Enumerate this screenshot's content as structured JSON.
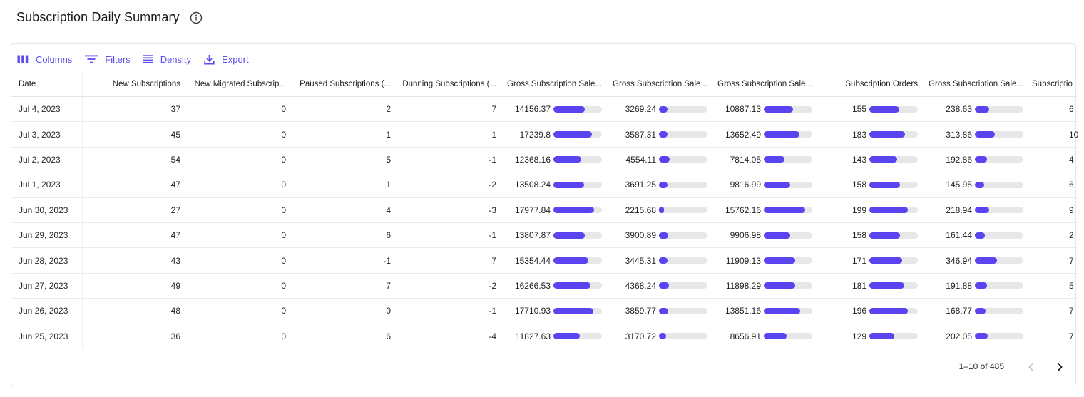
{
  "page": {
    "title": "Subscription Daily Summary",
    "info_icon": "info-circle-icon"
  },
  "toolbar": {
    "columns_label": "Columns",
    "filters_label": "Filters",
    "density_label": "Density",
    "export_label": "Export"
  },
  "colors": {
    "accent": "#5b4cf0",
    "bar_fill": "#5a44f0",
    "bar_track": "#e7e7ea"
  },
  "table": {
    "columns": [
      {
        "key": "date",
        "label": "Date"
      },
      {
        "key": "new_subs",
        "label": "New Subscriptions"
      },
      {
        "key": "migrated",
        "label": "New Migrated Subscrip..."
      },
      {
        "key": "paused",
        "label": "Paused Subscriptions (..."
      },
      {
        "key": "dunning",
        "label": "Dunning Subscriptions (..."
      },
      {
        "key": "gross1",
        "label": "Gross Subscription Sale..."
      },
      {
        "key": "gross2",
        "label": "Gross Subscription Sale..."
      },
      {
        "key": "gross3",
        "label": "Gross Subscription Sale..."
      },
      {
        "key": "orders",
        "label": "Subscription Orders"
      },
      {
        "key": "gross4",
        "label": "Gross Subscription Sale..."
      },
      {
        "key": "extra",
        "label": "Subscriptio"
      }
    ],
    "rows": [
      {
        "date": "Jul 4, 2023",
        "new_subs": "37",
        "migrated": "0",
        "paused": "2",
        "dunning": "7",
        "gross1": "14156.37",
        "gross1_pct": 0.64,
        "gross2": "3269.24",
        "gross2_pct": 0.17,
        "gross3": "10887.13",
        "gross3_pct": 0.6,
        "orders": "155",
        "orders_pct": 0.62,
        "gross4": "238.63",
        "gross4_pct": 0.3,
        "extra": "6"
      },
      {
        "date": "Jul 3, 2023",
        "new_subs": "45",
        "migrated": "0",
        "paused": "1",
        "dunning": "1",
        "gross1": "17239.8",
        "gross1_pct": 0.8,
        "gross2": "3587.31",
        "gross2_pct": 0.17,
        "gross3": "13652.49",
        "gross3_pct": 0.73,
        "orders": "183",
        "orders_pct": 0.74,
        "gross4": "313.86",
        "gross4_pct": 0.41,
        "extra": "10"
      },
      {
        "date": "Jul 2, 2023",
        "new_subs": "54",
        "migrated": "0",
        "paused": "5",
        "dunning": "-1",
        "gross1": "12368.16",
        "gross1_pct": 0.58,
        "gross2": "4554.11",
        "gross2_pct": 0.22,
        "gross3": "7814.05",
        "gross3_pct": 0.43,
        "orders": "143",
        "orders_pct": 0.57,
        "gross4": "192.86",
        "gross4_pct": 0.25,
        "extra": "4"
      },
      {
        "date": "Jul 1, 2023",
        "new_subs": "47",
        "migrated": "0",
        "paused": "1",
        "dunning": "-2",
        "gross1": "13508.24",
        "gross1_pct": 0.63,
        "gross2": "3691.25",
        "gross2_pct": 0.18,
        "gross3": "9816.99",
        "gross3_pct": 0.54,
        "orders": "158",
        "orders_pct": 0.63,
        "gross4": "145.95",
        "gross4_pct": 0.19,
        "extra": "6"
      },
      {
        "date": "Jun 30, 2023",
        "new_subs": "27",
        "migrated": "0",
        "paused": "4",
        "dunning": "-3",
        "gross1": "17977.84",
        "gross1_pct": 0.84,
        "gross2": "2215.68",
        "gross2_pct": 0.11,
        "gross3": "15762.16",
        "gross3_pct": 0.86,
        "orders": "199",
        "orders_pct": 0.8,
        "gross4": "218.94",
        "gross4_pct": 0.29,
        "extra": "9"
      },
      {
        "date": "Jun 29, 2023",
        "new_subs": "47",
        "migrated": "0",
        "paused": "6",
        "dunning": "-1",
        "gross1": "13807.87",
        "gross1_pct": 0.64,
        "gross2": "3900.89",
        "gross2_pct": 0.19,
        "gross3": "9906.98",
        "gross3_pct": 0.54,
        "orders": "158",
        "orders_pct": 0.63,
        "gross4": "161.44",
        "gross4_pct": 0.21,
        "extra": "2"
      },
      {
        "date": "Jun 28, 2023",
        "new_subs": "43",
        "migrated": "0",
        "paused": "-1",
        "dunning": "7",
        "gross1": "15354.44",
        "gross1_pct": 0.72,
        "gross2": "3445.31",
        "gross2_pct": 0.17,
        "gross3": "11909.13",
        "gross3_pct": 0.65,
        "orders": "171",
        "orders_pct": 0.68,
        "gross4": "346.94",
        "gross4_pct": 0.45,
        "extra": "7"
      },
      {
        "date": "Jun 27, 2023",
        "new_subs": "49",
        "migrated": "0",
        "paused": "7",
        "dunning": "-2",
        "gross1": "16266.53",
        "gross1_pct": 0.76,
        "gross2": "4368.24",
        "gross2_pct": 0.21,
        "gross3": "11898.29",
        "gross3_pct": 0.65,
        "orders": "181",
        "orders_pct": 0.72,
        "gross4": "191.88",
        "gross4_pct": 0.25,
        "extra": "5"
      },
      {
        "date": "Jun 26, 2023",
        "new_subs": "48",
        "migrated": "0",
        "paused": "0",
        "dunning": "-1",
        "gross1": "17710.93",
        "gross1_pct": 0.83,
        "gross2": "3859.77",
        "gross2_pct": 0.19,
        "gross3": "13851.16",
        "gross3_pct": 0.75,
        "orders": "196",
        "orders_pct": 0.79,
        "gross4": "168.77",
        "gross4_pct": 0.22,
        "extra": "7"
      },
      {
        "date": "Jun 25, 2023",
        "new_subs": "36",
        "migrated": "0",
        "paused": "6",
        "dunning": "-4",
        "gross1": "11827.63",
        "gross1_pct": 0.55,
        "gross2": "3170.72",
        "gross2_pct": 0.15,
        "gross3": "8656.91",
        "gross3_pct": 0.47,
        "orders": "129",
        "orders_pct": 0.52,
        "gross4": "202.05",
        "gross4_pct": 0.26,
        "extra": "7"
      }
    ]
  },
  "pagination": {
    "range_label": "1–10 of 485",
    "prev_icon": "chevron-left-icon",
    "next_icon": "chevron-right-icon"
  }
}
